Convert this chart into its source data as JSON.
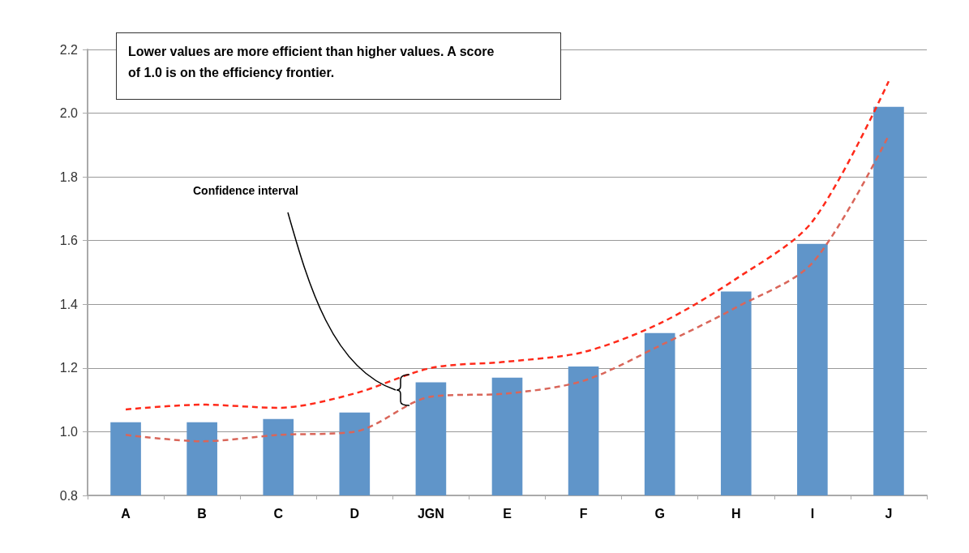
{
  "chart_data": {
    "type": "bar",
    "categories": [
      "A",
      "B",
      "C",
      "D",
      "JGN",
      "E",
      "F",
      "G",
      "H",
      "I",
      "J"
    ],
    "series": [
      {
        "color": "#6095c9",
        "values": [
          1.03,
          1.03,
          1.04,
          1.06,
          1.155,
          1.17,
          1.205,
          1.31,
          1.44,
          1.59,
          2.02
        ]
      },
      {
        "type": "line",
        "color": "#ff2a1a",
        "line_style": "dashed",
        "values": [
          1.07,
          1.085,
          1.075,
          1.12,
          1.2,
          1.22,
          1.25,
          1.34,
          1.48,
          1.66,
          2.1
        ]
      },
      {
        "type": "line",
        "color": "#d9665a",
        "line_style": "dashed",
        "values": [
          0.99,
          0.97,
          0.99,
          1.0,
          1.11,
          1.12,
          1.16,
          1.27,
          1.39,
          1.53,
          1.93
        ]
      }
    ],
    "marker": "none",
    "ylim": [
      0.8,
      2.2
    ],
    "yticks": [
      0.8,
      {
        "value": 1,
        "label": "1.0"
      },
      1.2,
      1.4,
      1.6,
      1.8,
      {
        "value": 2,
        "label": "2.0"
      },
      2.2
    ],
    "grid": "y",
    "annotations": [
      "Lower values are more efficient than higher values. A score of 1.0 is on the efficiency frontier.",
      "Confidence interval"
    ]
  }
}
